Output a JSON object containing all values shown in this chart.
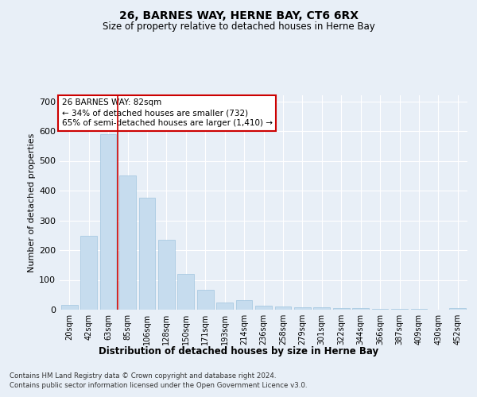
{
  "title1": "26, BARNES WAY, HERNE BAY, CT6 6RX",
  "title2": "Size of property relative to detached houses in Herne Bay",
  "xlabel": "Distribution of detached houses by size in Herne Bay",
  "ylabel": "Number of detached properties",
  "categories": [
    "20sqm",
    "42sqm",
    "63sqm",
    "85sqm",
    "106sqm",
    "128sqm",
    "150sqm",
    "171sqm",
    "193sqm",
    "214sqm",
    "236sqm",
    "258sqm",
    "279sqm",
    "301sqm",
    "322sqm",
    "344sqm",
    "366sqm",
    "387sqm",
    "409sqm",
    "430sqm",
    "452sqm"
  ],
  "values": [
    17,
    247,
    590,
    450,
    375,
    235,
    120,
    68,
    23,
    32,
    14,
    10,
    7,
    8,
    5,
    5,
    3,
    3,
    3,
    0,
    5
  ],
  "bar_color": "#c6dcee",
  "bar_edge_color": "#a0c4de",
  "vline_color": "#cc0000",
  "annotation_text": "26 BARNES WAY: 82sqm\n← 34% of detached houses are smaller (732)\n65% of semi-detached houses are larger (1,410) →",
  "annotation_box_color": "#ffffff",
  "annotation_box_edge": "#cc0000",
  "bg_color": "#e8eff7",
  "plot_bg_color": "#e8eff7",
  "footer1": "Contains HM Land Registry data © Crown copyright and database right 2024.",
  "footer2": "Contains public sector information licensed under the Open Government Licence v3.0.",
  "ylim": [
    0,
    720
  ],
  "yticks": [
    0,
    100,
    200,
    300,
    400,
    500,
    600,
    700
  ]
}
